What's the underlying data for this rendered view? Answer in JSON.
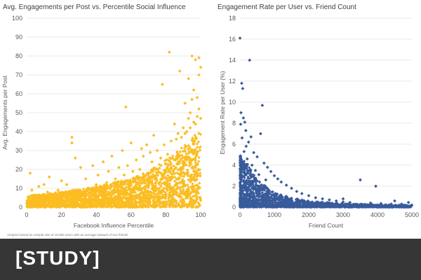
{
  "chart_data": [
    {
      "type": "scatter",
      "title": "Avg. Engagements per Post vs. Percentile Social Influence",
      "xlabel": "Facebook Influence Percentile",
      "ylabel": "Avg. Engagements per Post",
      "xlim": [
        0,
        100
      ],
      "ylim": [
        0,
        100
      ],
      "x_ticks": [
        0,
        20,
        40,
        60,
        80,
        100
      ],
      "y_ticks": [
        0,
        10,
        20,
        30,
        40,
        50,
        60,
        70,
        80,
        90,
        100
      ],
      "color": "#fbbd22",
      "marker": "diamond",
      "grid": "horizontal",
      "legend": "none",
      "points": [
        [
          2,
          18
        ],
        [
          26,
          37
        ],
        [
          26,
          34
        ],
        [
          57,
          53
        ],
        [
          82,
          82
        ],
        [
          78,
          65
        ],
        [
          95,
          80
        ],
        [
          97,
          78
        ],
        [
          88,
          72
        ],
        [
          93,
          68
        ],
        [
          99,
          79
        ],
        [
          96,
          62
        ],
        [
          98,
          58
        ],
        [
          91,
          55
        ],
        [
          94,
          50
        ],
        [
          99,
          70
        ],
        [
          100,
          74
        ],
        [
          96,
          45
        ],
        [
          98,
          48
        ],
        [
          90,
          42
        ],
        [
          85,
          44
        ],
        [
          92,
          40
        ],
        [
          87,
          39
        ],
        [
          73,
          38
        ],
        [
          69,
          33
        ],
        [
          66,
          31
        ],
        [
          60,
          34
        ],
        [
          55,
          30
        ],
        [
          49,
          27
        ],
        [
          44,
          24
        ],
        [
          38,
          22
        ],
        [
          31,
          21
        ],
        [
          28,
          26
        ],
        [
          20,
          14
        ],
        [
          13,
          16
        ],
        [
          10,
          12
        ],
        [
          7,
          11
        ],
        [
          3,
          9
        ],
        [
          12,
          8
        ],
        [
          18,
          9
        ],
        [
          23,
          12
        ],
        [
          34,
          15
        ],
        [
          41,
          17
        ],
        [
          47,
          19
        ],
        [
          53,
          21
        ],
        [
          58,
          22
        ],
        [
          63,
          25
        ],
        [
          67,
          27
        ],
        [
          71,
          29
        ],
        [
          75,
          30
        ],
        [
          79,
          33
        ],
        [
          83,
          35
        ],
        [
          86,
          36
        ],
        [
          89,
          37
        ],
        [
          91,
          39
        ],
        [
          94,
          42
        ],
        [
          97,
          44
        ],
        [
          100,
          47
        ],
        [
          99,
          52
        ],
        [
          95,
          57
        ],
        [
          93,
          47
        ],
        [
          81,
          28
        ],
        [
          77,
          26
        ],
        [
          72,
          24
        ],
        [
          65,
          20
        ],
        [
          61,
          19
        ],
        [
          56,
          17
        ],
        [
          51,
          15
        ],
        [
          46,
          13
        ],
        [
          40,
          12
        ],
        [
          35,
          10
        ],
        [
          30,
          9
        ],
        [
          25,
          8
        ],
        [
          16,
          7
        ],
        [
          9,
          6
        ],
        [
          5,
          5
        ]
      ],
      "density_bands": [
        {
          "x": 0,
          "upper": 6
        },
        {
          "x": 20,
          "upper": 8
        },
        {
          "x": 40,
          "upper": 11
        },
        {
          "x": 60,
          "upper": 15
        },
        {
          "x": 70,
          "upper": 19
        },
        {
          "x": 80,
          "upper": 25
        },
        {
          "x": 90,
          "upper": 32
        },
        {
          "x": 100,
          "upper": 42
        }
      ]
    },
    {
      "type": "scatter",
      "title": "Engagement Rate per User vs. Friend Count",
      "xlabel": "Friend Count",
      "ylabel": "Engagement Rate per User (%)",
      "xlim": [
        0,
        5000
      ],
      "ylim": [
        0,
        18
      ],
      "x_ticks": [
        0,
        1000,
        2000,
        3000,
        4000,
        5000
      ],
      "y_ticks": [
        0,
        2,
        4,
        6,
        8,
        10,
        12,
        14,
        16,
        18
      ],
      "color": "#385b9b",
      "marker": "diamond",
      "grid": "horizontal",
      "legend": "none",
      "points": [
        [
          0,
          16.1
        ],
        [
          280,
          14
        ],
        [
          50,
          11.8
        ],
        [
          80,
          11.3
        ],
        [
          650,
          9.7
        ],
        [
          30,
          9
        ],
        [
          100,
          8.5
        ],
        [
          140,
          8.1
        ],
        [
          170,
          7.3
        ],
        [
          600,
          7
        ],
        [
          320,
          6.7
        ],
        [
          250,
          6.2
        ],
        [
          180,
          5.8
        ],
        [
          400,
          5.2
        ],
        [
          500,
          4.8
        ],
        [
          700,
          4.2
        ],
        [
          800,
          3.8
        ],
        [
          900,
          3.4
        ],
        [
          1000,
          3.0
        ],
        [
          1100,
          2.7
        ],
        [
          1200,
          2.4
        ],
        [
          1350,
          2.1
        ],
        [
          1500,
          1.8
        ],
        [
          1650,
          1.5
        ],
        [
          1800,
          1.3
        ],
        [
          2000,
          1.1
        ],
        [
          2200,
          0.9
        ],
        [
          2400,
          0.8
        ],
        [
          2600,
          0.7
        ],
        [
          2800,
          0.6
        ],
        [
          3000,
          0.5
        ],
        [
          3200,
          0.45
        ],
        [
          3500,
          2.6
        ],
        [
          3950,
          2.0
        ],
        [
          3800,
          0.4
        ],
        [
          4100,
          0.35
        ],
        [
          4400,
          0.3
        ],
        [
          4700,
          0.3
        ],
        [
          4900,
          0.45
        ],
        [
          5000,
          0.2
        ],
        [
          3000,
          0.8
        ],
        [
          4500,
          0.6
        ],
        [
          20,
          7.9
        ],
        [
          60,
          6.6
        ],
        [
          120,
          5.3
        ],
        [
          210,
          4.6
        ],
        [
          350,
          4.0
        ],
        [
          450,
          3.5
        ],
        [
          550,
          3.1
        ],
        [
          750,
          2.6
        ]
      ],
      "density_bands": [
        {
          "x": 0,
          "upper": 5.0
        },
        {
          "x": 250,
          "upper": 4.0
        },
        {
          "x": 500,
          "upper": 2.6
        },
        {
          "x": 1000,
          "upper": 1.4
        },
        {
          "x": 1500,
          "upper": 0.9
        },
        {
          "x": 2000,
          "upper": 0.6
        },
        {
          "x": 3000,
          "upper": 0.35
        },
        {
          "x": 4000,
          "upper": 0.25
        },
        {
          "x": 5000,
          "upper": 0.2
        }
      ]
    }
  ],
  "footnote": "Analysis based on sample size of 10,500 users with an average network of 512 friends",
  "banner": {
    "label": "[STUDY]",
    "background": "#363636"
  }
}
